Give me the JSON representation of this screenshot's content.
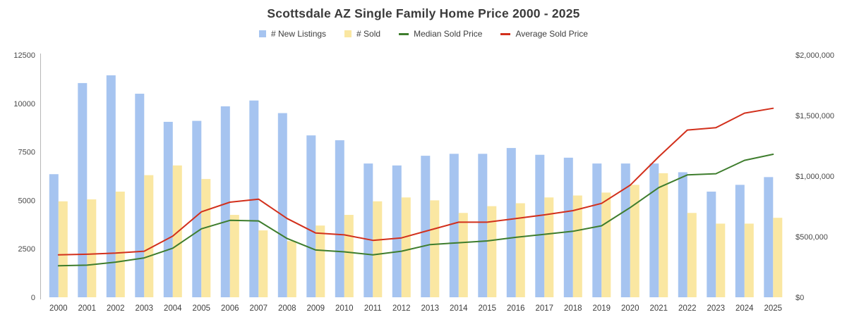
{
  "title": "Scottsdale AZ Single Family Home Price 2000 - 2025",
  "chart_data": {
    "type": "combo",
    "title": "Scottsdale AZ Single Family Home Price 2000 - 2025",
    "legend_position": "top",
    "grid": false,
    "categories": [
      2000,
      2001,
      2002,
      2003,
      2004,
      2005,
      2006,
      2007,
      2008,
      2009,
      2010,
      2011,
      2012,
      2013,
      2014,
      2015,
      2016,
      2017,
      2018,
      2019,
      2020,
      2021,
      2022,
      2023,
      2024,
      2025
    ],
    "series": [
      {
        "name": "# New Listings",
        "kind": "bar",
        "axis": "left",
        "color": "#a6c4f0",
        "values": [
          6350,
          11050,
          11450,
          10500,
          9050,
          9100,
          9850,
          10150,
          9500,
          8350,
          8100,
          6900,
          6800,
          7300,
          7400,
          7400,
          7700,
          7350,
          7200,
          6900,
          6900,
          6900,
          6450,
          5450,
          5800,
          6200
        ]
      },
      {
        "name": "# Sold",
        "kind": "bar",
        "axis": "left",
        "color": "#fae7a2",
        "values": [
          4950,
          5050,
          5450,
          6300,
          6800,
          6100,
          4250,
          3450,
          2900,
          3700,
          4250,
          4950,
          5150,
          5000,
          4350,
          4700,
          4850,
          5150,
          5250,
          5400,
          5800,
          6400,
          4350,
          3800,
          3800,
          4100
        ]
      },
      {
        "name": "Median Sold Price",
        "kind": "line",
        "axis": "right",
        "color": "#3e7d2d",
        "values": [
          260000,
          265000,
          290000,
          325000,
          405000,
          565000,
          635000,
          630000,
          485000,
          390000,
          375000,
          350000,
          380000,
          435000,
          450000,
          465000,
          495000,
          520000,
          545000,
          590000,
          740000,
          905000,
          1010000,
          1020000,
          1130000,
          1180000
        ]
      },
      {
        "name": "Average Sold Price",
        "kind": "line",
        "axis": "right",
        "color": "#d2301c",
        "values": [
          350000,
          355000,
          365000,
          380000,
          505000,
          705000,
          785000,
          810000,
          650000,
          530000,
          515000,
          470000,
          490000,
          555000,
          620000,
          620000,
          650000,
          680000,
          715000,
          775000,
          925000,
          1160000,
          1380000,
          1400000,
          1520000,
          1560000
        ]
      }
    ],
    "left_axis": {
      "max": 12500,
      "ticks": [
        0,
        2500,
        5000,
        7500,
        10000,
        12500
      ]
    },
    "right_axis": {
      "max": 2000000,
      "tick_values": [
        0,
        500000,
        1000000,
        1500000,
        2000000
      ],
      "tick_labels": [
        "$0",
        "$500,000",
        "$1,000,000",
        "$1,500,000",
        "$2,000,000"
      ]
    },
    "axis_line_color": "#b7b7b7"
  }
}
